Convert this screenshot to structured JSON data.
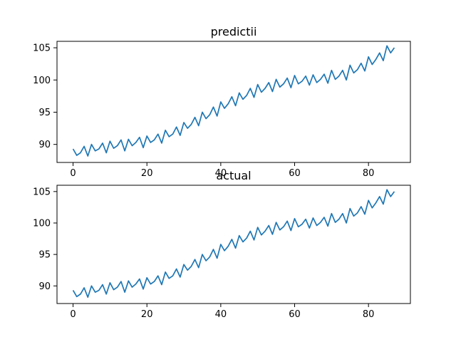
{
  "chart_data": [
    {
      "type": "line",
      "title": "predictii",
      "xlabel": "",
      "ylabel": "",
      "xlim": [
        -4.35,
        91.35
      ],
      "ylim": [
        87.2,
        106.0
      ],
      "xticks": [
        0,
        20,
        40,
        60,
        80
      ],
      "yticks": [
        90,
        95,
        100,
        105
      ],
      "x_start": 0,
      "grid": false,
      "color": "#1f77b4",
      "values": [
        89.3,
        88.3,
        88.7,
        89.7,
        88.2,
        90.0,
        89.0,
        89.3,
        90.2,
        88.7,
        90.5,
        89.4,
        89.8,
        90.7,
        89.0,
        90.8,
        89.8,
        90.3,
        91.1,
        89.5,
        91.3,
        90.3,
        90.7,
        91.6,
        90.2,
        92.2,
        91.2,
        91.6,
        92.7,
        91.4,
        93.4,
        92.5,
        93.1,
        94.2,
        92.9,
        95.0,
        94.0,
        94.6,
        95.8,
        94.4,
        96.6,
        95.6,
        96.3,
        97.4,
        96.0,
        98.0,
        97.0,
        97.6,
        98.7,
        97.3,
        99.3,
        98.1,
        98.7,
        99.6,
        98.2,
        100.1,
        98.9,
        99.4,
        100.3,
        98.8,
        100.7,
        99.4,
        99.8,
        100.6,
        99.2,
        100.8,
        99.6,
        100.1,
        100.9,
        99.5,
        101.5,
        100.1,
        100.6,
        101.5,
        100.0,
        102.3,
        101.1,
        101.6,
        102.6,
        101.4,
        103.6,
        102.4,
        103.2,
        104.2,
        103.0,
        105.3,
        104.2,
        105.0
      ]
    },
    {
      "type": "line",
      "title": "actual",
      "xlabel": "",
      "ylabel": "",
      "xlim": [
        -4.35,
        91.35
      ],
      "ylim": [
        87.2,
        106.0
      ],
      "xticks": [
        0,
        20,
        40,
        60,
        80
      ],
      "yticks": [
        90,
        95,
        100,
        105
      ],
      "x_start": 0,
      "grid": false,
      "color": "#1f77b4",
      "values": [
        89.3,
        88.3,
        88.7,
        89.7,
        88.2,
        90.0,
        89.0,
        89.3,
        90.2,
        88.7,
        90.5,
        89.4,
        89.8,
        90.7,
        89.0,
        90.8,
        89.8,
        90.3,
        91.1,
        89.5,
        91.3,
        90.3,
        90.7,
        91.6,
        90.2,
        92.2,
        91.2,
        91.6,
        92.7,
        91.4,
        93.4,
        92.5,
        93.1,
        94.2,
        92.9,
        95.0,
        94.0,
        94.6,
        95.8,
        94.4,
        96.6,
        95.6,
        96.3,
        97.4,
        96.0,
        98.0,
        97.0,
        97.6,
        98.7,
        97.3,
        99.3,
        98.1,
        98.7,
        99.6,
        98.2,
        100.1,
        98.9,
        99.4,
        100.3,
        98.8,
        100.7,
        99.4,
        99.8,
        100.6,
        99.2,
        100.8,
        99.6,
        100.1,
        100.9,
        99.5,
        101.5,
        100.1,
        100.6,
        101.5,
        100.0,
        102.3,
        101.1,
        101.6,
        102.6,
        101.4,
        103.6,
        102.4,
        103.2,
        104.2,
        103.0,
        105.3,
        104.2,
        105.0
      ]
    }
  ]
}
